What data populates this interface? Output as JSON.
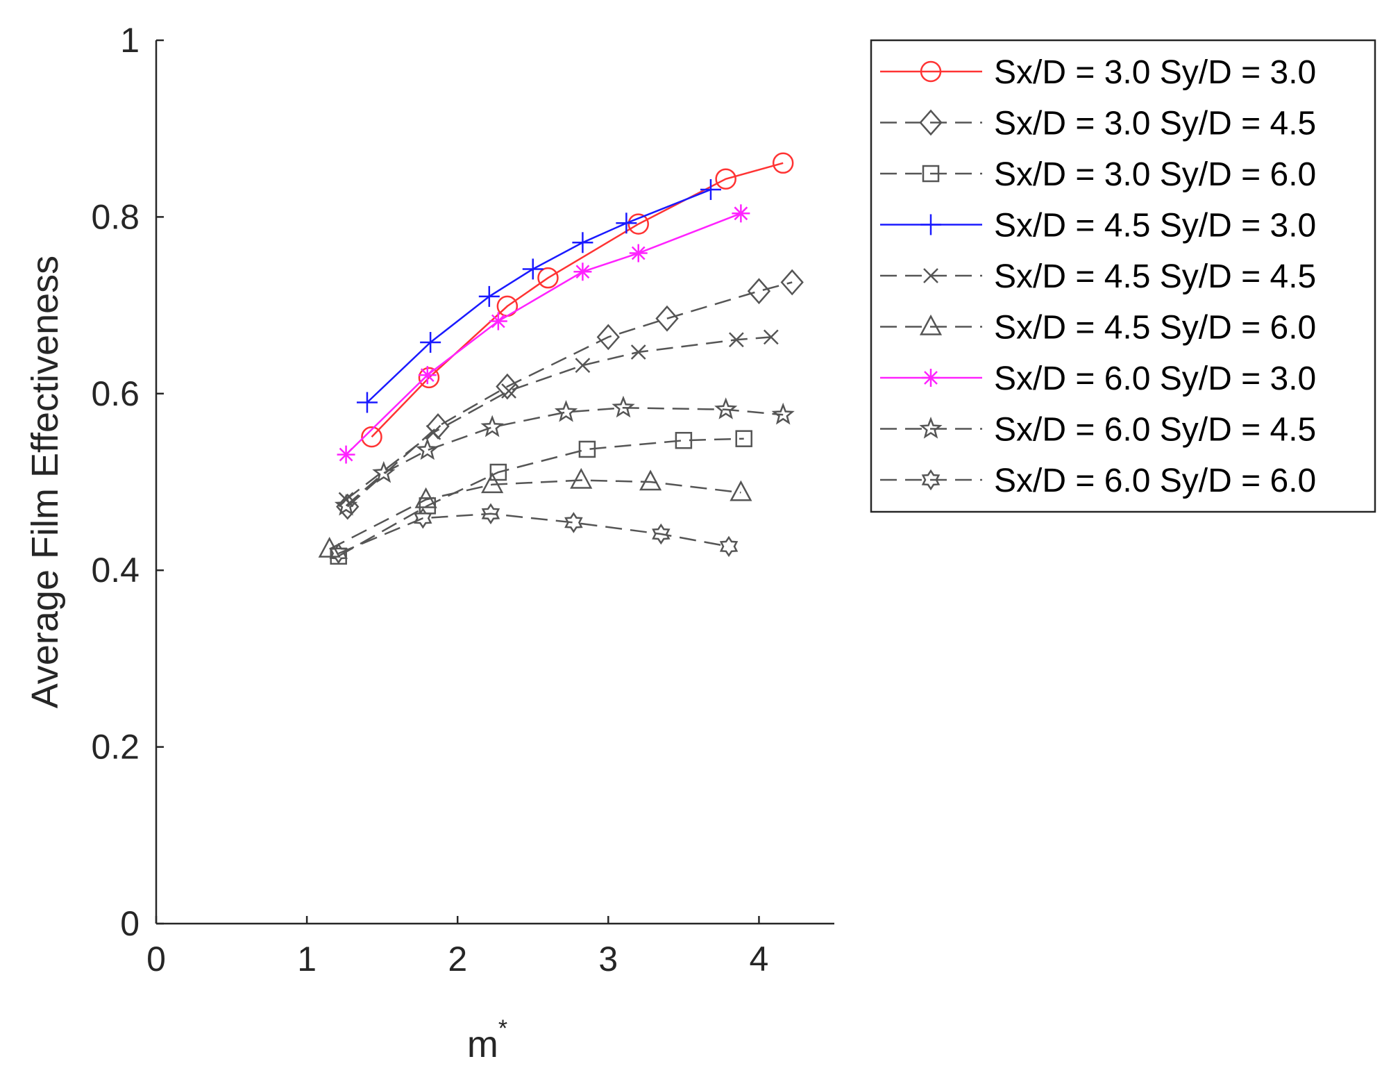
{
  "chart_data": {
    "type": "line",
    "xlabel": "m",
    "xlabel_superscript": "*",
    "ylabel": "Average Film Effectiveness",
    "xlim": [
      0,
      4.5
    ],
    "ylim": [
      0,
      1
    ],
    "xticks": [
      "0",
      "1",
      "2",
      "3",
      "4"
    ],
    "yticks": [
      "0",
      "0.2",
      "0.4",
      "0.6",
      "0.8",
      "1"
    ],
    "grid": false,
    "legend_position": "outside-top-right",
    "series": [
      {
        "name": "Sx/D = 3.0 Sy/D = 3.0",
        "color": "#ff3333",
        "dash": "solid",
        "marker": "circle",
        "x": [
          1.43,
          1.81,
          2.33,
          2.6,
          3.2,
          3.78,
          4.16
        ],
        "y": [
          0.551,
          0.618,
          0.699,
          0.731,
          0.792,
          0.843,
          0.861
        ]
      },
      {
        "name": "Sx/D = 3.0 Sy/D = 4.5",
        "color": "#555555",
        "dash": "dashed",
        "marker": "diamond",
        "x": [
          1.27,
          1.87,
          2.33,
          3.0,
          3.39,
          4.0,
          4.22
        ],
        "y": [
          0.472,
          0.563,
          0.608,
          0.664,
          0.685,
          0.716,
          0.726
        ]
      },
      {
        "name": "Sx/D = 3.0 Sy/D = 6.0",
        "color": "#555555",
        "dash": "dashed",
        "marker": "square",
        "x": [
          1.21,
          1.8,
          2.27,
          2.86,
          3.5,
          3.9
        ],
        "y": [
          0.416,
          0.473,
          0.511,
          0.537,
          0.547,
          0.549
        ]
      },
      {
        "name": "Sx/D = 4.5 Sy/D = 3.0",
        "color": "#1a1aff",
        "dash": "solid",
        "marker": "plus",
        "x": [
          1.4,
          1.82,
          2.21,
          2.5,
          2.83,
          3.12,
          3.68
        ],
        "y": [
          0.59,
          0.658,
          0.71,
          0.741,
          0.771,
          0.793,
          0.831
        ]
      },
      {
        "name": "Sx/D = 4.5 Sy/D = 4.5",
        "color": "#555555",
        "dash": "dashed",
        "marker": "x",
        "x": [
          1.26,
          1.84,
          2.34,
          2.83,
          3.2,
          3.85,
          4.08
        ],
        "y": [
          0.48,
          0.556,
          0.603,
          0.632,
          0.647,
          0.661,
          0.664
        ]
      },
      {
        "name": "Sx/D = 4.5 Sy/D = 6.0",
        "color": "#555555",
        "dash": "dashed",
        "marker": "triangle",
        "x": [
          1.15,
          1.79,
          2.23,
          2.82,
          3.28,
          3.88
        ],
        "y": [
          0.424,
          0.48,
          0.497,
          0.502,
          0.5,
          0.488
        ]
      },
      {
        "name": "Sx/D = 6.0 Sy/D = 3.0",
        "color": "#ff22ff",
        "dash": "solid",
        "marker": "asterisk",
        "x": [
          1.26,
          1.8,
          2.27,
          2.83,
          3.2,
          3.88
        ],
        "y": [
          0.531,
          0.621,
          0.682,
          0.738,
          0.759,
          0.804
        ]
      },
      {
        "name": "Sx/D = 6.0 Sy/D = 4.5",
        "color": "#555555",
        "dash": "dashed",
        "marker": "pentagram",
        "x": [
          1.26,
          1.51,
          1.8,
          2.23,
          2.72,
          3.1,
          3.78,
          4.16
        ],
        "y": [
          0.473,
          0.51,
          0.536,
          0.562,
          0.579,
          0.584,
          0.582,
          0.576
        ]
      },
      {
        "name": "Sx/D = 6.0 Sy/D = 6.0",
        "color": "#555555",
        "dash": "dashed",
        "marker": "hexagram",
        "x": [
          1.21,
          1.77,
          2.22,
          2.77,
          3.35,
          3.8
        ],
        "y": [
          0.419,
          0.459,
          0.464,
          0.454,
          0.441,
          0.427
        ]
      }
    ]
  }
}
